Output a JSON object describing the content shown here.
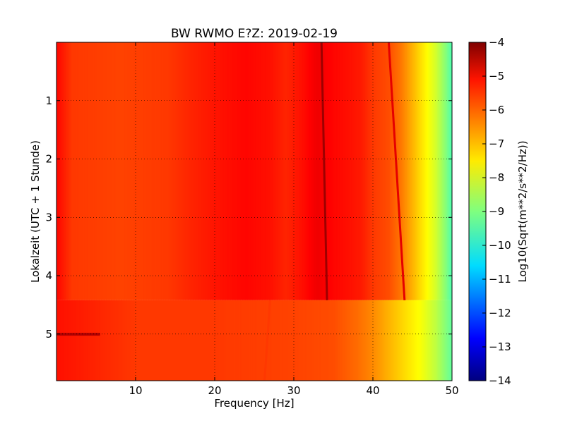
{
  "chart_data": {
    "type": "heatmap",
    "title": "BW RWMO E?Z: 2019-02-19",
    "xlabel": "Frequency [Hz]",
    "ylabel": "Lokalzeit (UTC + 1 Stunde)",
    "xlim": [
      0,
      50
    ],
    "ylim": [
      5.8,
      0
    ],
    "x_ticks": [
      10,
      20,
      30,
      40,
      50
    ],
    "y_ticks": [
      1,
      2,
      3,
      4,
      5
    ],
    "grid": true,
    "colormap": "jet",
    "colorbar": {
      "label": "Log10(Sqrt(m**2/s**2/Hz))",
      "range": [
        -14,
        -4
      ],
      "ticks": [
        -4,
        -5,
        -6,
        -7,
        -8,
        -9,
        -10,
        -11,
        -12,
        -13,
        -14
      ]
    },
    "level_change_time": 4.42,
    "base_profile": [
      {
        "freq": 0,
        "value": -5.3
      },
      {
        "freq": 2,
        "value": -5.8
      },
      {
        "freq": 8,
        "value": -5.9
      },
      {
        "freq": 14,
        "value": -5.8
      },
      {
        "freq": 17,
        "value": -5.6
      },
      {
        "freq": 21,
        "value": -5.4
      },
      {
        "freq": 24,
        "value": -5.3
      },
      {
        "freq": 27,
        "value": -5.4
      },
      {
        "freq": 29,
        "value": -5.6
      },
      {
        "freq": 31,
        "value": -5.4
      },
      {
        "freq": 33,
        "value": -5.1
      },
      {
        "freq": 35,
        "value": -5.3
      },
      {
        "freq": 37,
        "value": -5.4
      },
      {
        "freq": 38.5,
        "value": -5.5
      },
      {
        "freq": 40,
        "value": -5.8
      },
      {
        "freq": 42,
        "value": -6.0
      },
      {
        "freq": 43.5,
        "value": -6.4
      },
      {
        "freq": 45,
        "value": -7.0
      },
      {
        "freq": 46.5,
        "value": -7.6
      },
      {
        "freq": 48,
        "value": -8.2
      },
      {
        "freq": 49.3,
        "value": -9.0
      },
      {
        "freq": 50,
        "value": -9.5
      }
    ],
    "late_profile": [
      {
        "freq": 0,
        "value": -5.4
      },
      {
        "freq": 10,
        "value": -5.8
      },
      {
        "freq": 20,
        "value": -5.8
      },
      {
        "freq": 30,
        "value": -5.9
      },
      {
        "freq": 35,
        "value": -6.0
      },
      {
        "freq": 38,
        "value": -6.3
      },
      {
        "freq": 40,
        "value": -6.6
      },
      {
        "freq": 42,
        "value": -7.0
      },
      {
        "freq": 44,
        "value": -7.4
      },
      {
        "freq": 46,
        "value": -7.8
      },
      {
        "freq": 48,
        "value": -8.4
      },
      {
        "freq": 50,
        "value": -9.3
      }
    ],
    "features": [
      {
        "name": "drifting-line-main",
        "freq_start": 33.5,
        "freq_end": 34.2,
        "time_start": 0,
        "time_end": 4.42,
        "value": -4.3
      },
      {
        "name": "drifting-line-faint",
        "freq_start": 42.0,
        "freq_end": 44.0,
        "time_start": 0,
        "time_end": 4.42,
        "value": -5.0
      },
      {
        "name": "short-event",
        "freq_start": 0,
        "freq_end": 5.5,
        "time_start": 4.98,
        "time_end": 5.02,
        "value": -4.5
      },
      {
        "name": "late-drift-line",
        "freq_start": 27.0,
        "freq_end": 26.3,
        "time_start": 4.42,
        "time_end": 5.8,
        "value": -5.8
      }
    ]
  }
}
